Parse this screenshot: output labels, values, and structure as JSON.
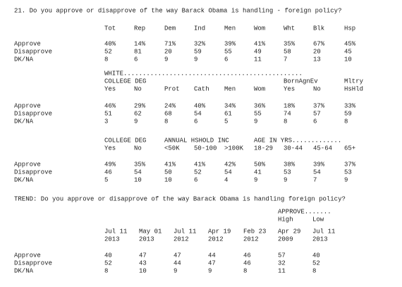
{
  "question": "21. Do you approve or disapprove of the way Barack Obama is handling - foreign policy?",
  "tables": [
    {
      "header_lines": [
        [
          "Tot",
          "Rep",
          "Dem",
          "Ind",
          "Men",
          "Wom",
          "Wht",
          "Blk",
          "Hsp"
        ]
      ],
      "rows": [
        {
          "label": "Approve",
          "values": [
            "40%",
            "14%",
            "71%",
            "32%",
            "39%",
            "41%",
            "35%",
            "67%",
            "45%"
          ]
        },
        {
          "label": "Disapprove",
          "values": [
            "52",
            "81",
            "20",
            "59",
            "55",
            "49",
            "58",
            "20",
            "45"
          ]
        },
        {
          "label": "DK/NA",
          "values": [
            "8",
            "6",
            "9",
            "9",
            "6",
            "11",
            "7",
            "13",
            "10"
          ]
        }
      ]
    },
    {
      "header_lines": [
        [
          "WHITE..............................................."
        ],
        [
          "COLLEGE DEG",
          "BornAgnEv",
          "Mltry"
        ],
        [
          "Yes",
          "No",
          "Prot",
          "Cath",
          "Men",
          "Wom",
          "Yes",
          "No",
          "HsHld"
        ]
      ],
      "rows": [
        {
          "label": "Approve",
          "values": [
            "46%",
            "29%",
            "24%",
            "40%",
            "34%",
            "36%",
            "18%",
            "37%",
            "33%"
          ]
        },
        {
          "label": "Disapprove",
          "values": [
            "51",
            "62",
            "68",
            "54",
            "61",
            "55",
            "74",
            "57",
            "59"
          ]
        },
        {
          "label": "DK/NA",
          "values": [
            "3",
            "9",
            "8",
            "6",
            "5",
            "9",
            "8",
            "6",
            "8"
          ]
        }
      ]
    },
    {
      "header_lines": [
        [
          "COLLEGE DEG",
          "ANNUAL HSHOLD INC",
          "AGE IN YRS............."
        ],
        [
          "Yes",
          "No",
          "<50K",
          "50-100",
          ">100K",
          "18-29",
          "30-44",
          "45-64",
          "65+"
        ]
      ],
      "rows": [
        {
          "label": "Approve",
          "values": [
            "49%",
            "35%",
            "41%",
            "41%",
            "42%",
            "50%",
            "38%",
            "39%",
            "37%"
          ]
        },
        {
          "label": "Disapprove",
          "values": [
            "46",
            "54",
            "50",
            "52",
            "54",
            "41",
            "53",
            "54",
            "53"
          ]
        },
        {
          "label": "DK/NA",
          "values": [
            "5",
            "10",
            "10",
            "6",
            "4",
            "9",
            "9",
            "7",
            "9"
          ]
        }
      ]
    }
  ],
  "trend": {
    "title": "TREND: Do you approve or disapprove of the way Barack Obama is handling foreign policy?",
    "header_lines": [
      [
        "APPROVE......."
      ],
      [
        "High",
        "Low"
      ],
      [
        "Jul 11",
        "May 01",
        "Jul 11",
        "Apr 19",
        "Feb 23",
        "Apr 29",
        "Jul 11"
      ],
      [
        "2013",
        "2013",
        "2012",
        "2012",
        "2012",
        "2009",
        "2013"
      ]
    ],
    "rows": [
      {
        "label": "Approve",
        "values": [
          "40",
          "47",
          "47",
          "44",
          "46",
          "57",
          "40"
        ]
      },
      {
        "label": "Disapprove",
        "values": [
          "52",
          "43",
          "44",
          "47",
          "46",
          "32",
          "52"
        ]
      },
      {
        "label": "DK/NA",
        "values": [
          "8",
          "10",
          "9",
          "9",
          "8",
          "11",
          "8"
        ]
      }
    ]
  }
}
